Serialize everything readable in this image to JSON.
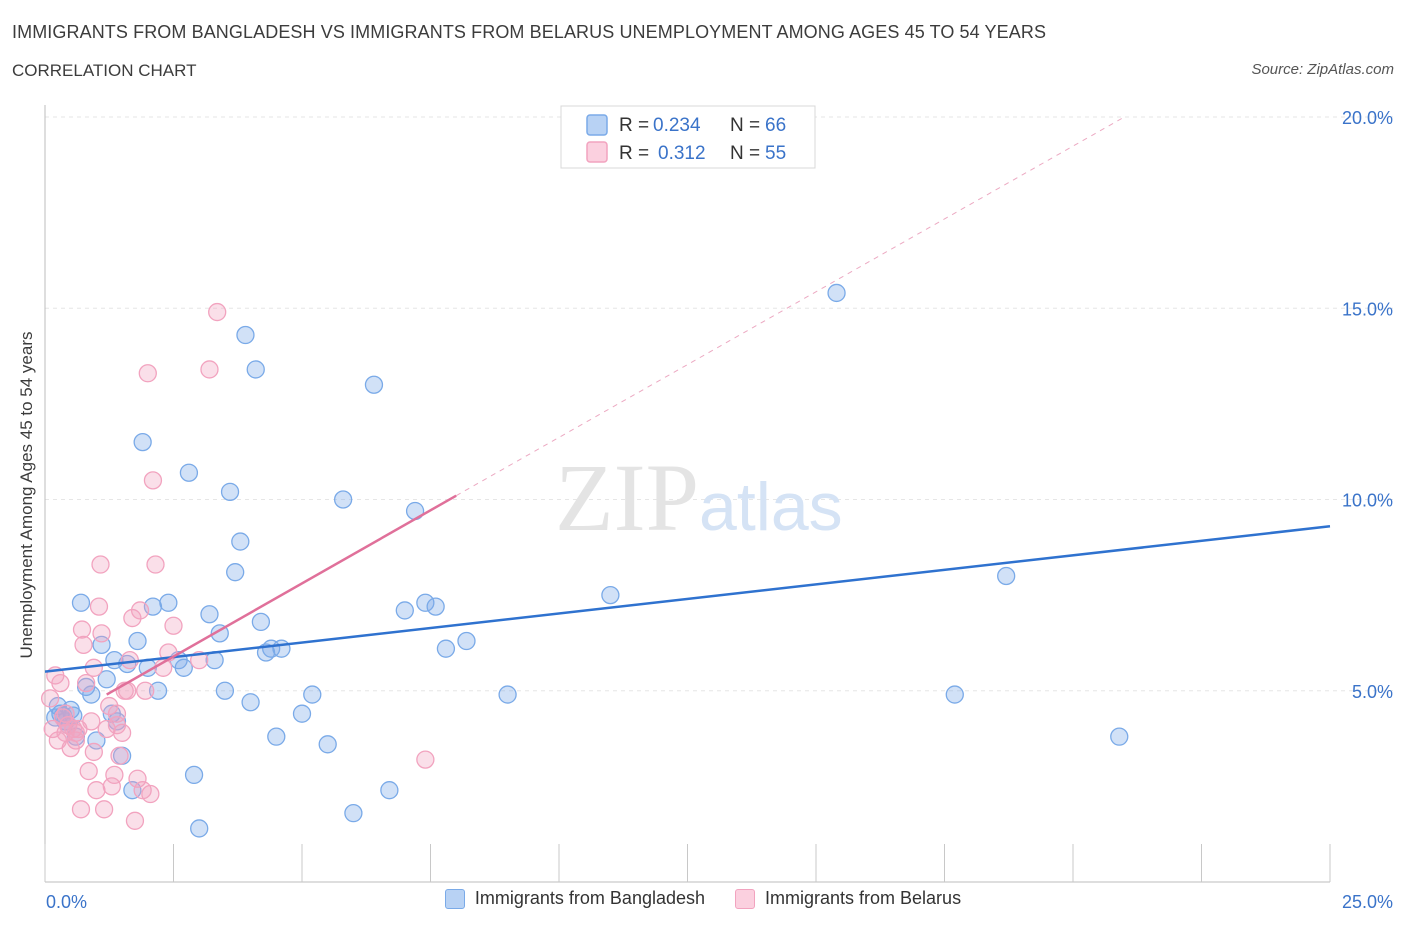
{
  "chart_data": {
    "type": "scatter",
    "title": "IMMIGRANTS FROM BANGLADESH VS IMMIGRANTS FROM BELARUS UNEMPLOYMENT AMONG AGES 45 TO 54 YEARS",
    "subtitle": "CORRELATION CHART",
    "source": "Source: ZipAtlas.com",
    "ylabel": "Unemployment Among Ages 45 to 54 years",
    "xlabel": "",
    "xlim": [
      0,
      25
    ],
    "ylim": [
      0,
      20
    ],
    "x_tick_labels": [
      "0.0%",
      "25.0%"
    ],
    "y_ticks": [
      5,
      10,
      15,
      20
    ],
    "y_tick_labels": [
      "5.0%",
      "10.0%",
      "15.0%",
      "20.0%"
    ],
    "watermark": "ZIPatlas",
    "legend": {
      "r_label": "R =",
      "n_label": "N =",
      "entries": [
        {
          "r": "0.234",
          "n": "66"
        },
        {
          "r": "0.312",
          "n": "55"
        }
      ]
    },
    "series": [
      {
        "name": "Immigrants from Bangladesh",
        "color": "#7aaae8",
        "line_color": "#2f72cf",
        "trend": {
          "x0": 0,
          "y0": 5.5,
          "x1": 25,
          "y1": 9.3
        },
        "points": [
          [
            0.2,
            4.3
          ],
          [
            0.3,
            4.4
          ],
          [
            0.4,
            4.2
          ],
          [
            0.5,
            4.5
          ],
          [
            0.6,
            3.8
          ],
          [
            0.7,
            7.3
          ],
          [
            0.8,
            5.1
          ],
          [
            0.9,
            4.9
          ],
          [
            1.0,
            3.7
          ],
          [
            1.1,
            6.2
          ],
          [
            1.2,
            5.3
          ],
          [
            1.3,
            4.4
          ],
          [
            1.4,
            4.2
          ],
          [
            1.5,
            3.3
          ],
          [
            1.6,
            5.7
          ],
          [
            1.7,
            2.4
          ],
          [
            1.8,
            6.3
          ],
          [
            1.9,
            11.5
          ],
          [
            2.0,
            5.6
          ],
          [
            2.2,
            5.0
          ],
          [
            2.4,
            7.3
          ],
          [
            2.6,
            5.8
          ],
          [
            2.7,
            5.6
          ],
          [
            2.8,
            10.7
          ],
          [
            2.9,
            2.8
          ],
          [
            3.0,
            1.4
          ],
          [
            3.2,
            7.0
          ],
          [
            3.3,
            5.8
          ],
          [
            3.4,
            6.5
          ],
          [
            3.5,
            5.0
          ],
          [
            3.6,
            10.2
          ],
          [
            3.7,
            8.1
          ],
          [
            3.8,
            8.9
          ],
          [
            3.9,
            14.3
          ],
          [
            4.0,
            4.7
          ],
          [
            4.1,
            13.4
          ],
          [
            4.2,
            6.8
          ],
          [
            4.3,
            6.0
          ],
          [
            4.4,
            6.1
          ],
          [
            4.5,
            3.8
          ],
          [
            4.6,
            6.1
          ],
          [
            5.0,
            4.4
          ],
          [
            5.2,
            4.9
          ],
          [
            5.5,
            3.6
          ],
          [
            5.8,
            10.0
          ],
          [
            6.0,
            1.8
          ],
          [
            6.4,
            13.0
          ],
          [
            6.7,
            2.4
          ],
          [
            7.0,
            7.1
          ],
          [
            7.2,
            9.7
          ],
          [
            7.4,
            7.3
          ],
          [
            7.6,
            7.2
          ],
          [
            7.8,
            6.1
          ],
          [
            8.2,
            6.3
          ],
          [
            9.0,
            4.9
          ],
          [
            11.0,
            7.5
          ],
          [
            15.4,
            15.4
          ],
          [
            18.7,
            8.0
          ],
          [
            17.7,
            4.9
          ],
          [
            20.9,
            3.8
          ],
          [
            0.25,
            4.6
          ],
          [
            0.45,
            4.1
          ],
          [
            0.35,
            4.35
          ],
          [
            0.55,
            4.35
          ],
          [
            1.35,
            5.8
          ],
          [
            2.1,
            7.2
          ]
        ]
      },
      {
        "name": "Immigrants from Belarus",
        "color": "#f2a3bf",
        "line_color": "#e0709a",
        "trend": {
          "x0": 1.2,
          "y0": 4.9,
          "x1": 8.0,
          "y1": 10.1
        },
        "trend_ext": {
          "x0": 8.0,
          "y0": 10.1,
          "x1": 21.0,
          "y1": 20.0
        },
        "points": [
          [
            0.1,
            4.8
          ],
          [
            0.15,
            4.0
          ],
          [
            0.2,
            5.4
          ],
          [
            0.25,
            3.7
          ],
          [
            0.3,
            5.2
          ],
          [
            0.35,
            4.3
          ],
          [
            0.4,
            3.9
          ],
          [
            0.45,
            4.1
          ],
          [
            0.5,
            3.5
          ],
          [
            0.55,
            4.0
          ],
          [
            0.6,
            3.7
          ],
          [
            0.65,
            4.0
          ],
          [
            0.7,
            1.9
          ],
          [
            0.75,
            6.2
          ],
          [
            0.8,
            5.2
          ],
          [
            0.85,
            2.9
          ],
          [
            0.9,
            4.2
          ],
          [
            0.95,
            5.6
          ],
          [
            1.0,
            2.4
          ],
          [
            1.05,
            7.2
          ],
          [
            1.1,
            6.5
          ],
          [
            1.15,
            1.9
          ],
          [
            1.2,
            4.0
          ],
          [
            1.25,
            4.6
          ],
          [
            1.3,
            2.5
          ],
          [
            1.35,
            2.8
          ],
          [
            1.4,
            4.4
          ],
          [
            1.45,
            3.3
          ],
          [
            1.5,
            3.9
          ],
          [
            1.55,
            5.0
          ],
          [
            1.6,
            5.0
          ],
          [
            1.65,
            5.8
          ],
          [
            1.7,
            6.9
          ],
          [
            1.75,
            1.6
          ],
          [
            1.8,
            2.7
          ],
          [
            1.85,
            7.1
          ],
          [
            1.9,
            2.4
          ],
          [
            1.95,
            5.0
          ],
          [
            2.0,
            13.3
          ],
          [
            2.1,
            10.5
          ],
          [
            2.15,
            8.3
          ],
          [
            2.3,
            5.6
          ],
          [
            2.4,
            6.0
          ],
          [
            2.5,
            6.7
          ],
          [
            3.0,
            5.8
          ],
          [
            3.2,
            13.4
          ],
          [
            3.35,
            14.9
          ],
          [
            7.4,
            3.2
          ],
          [
            1.08,
            8.3
          ],
          [
            0.72,
            6.6
          ],
          [
            0.4,
            4.4
          ],
          [
            0.6,
            3.9
          ],
          [
            1.4,
            4.1
          ],
          [
            0.95,
            3.4
          ],
          [
            2.05,
            2.3
          ]
        ]
      }
    ]
  }
}
